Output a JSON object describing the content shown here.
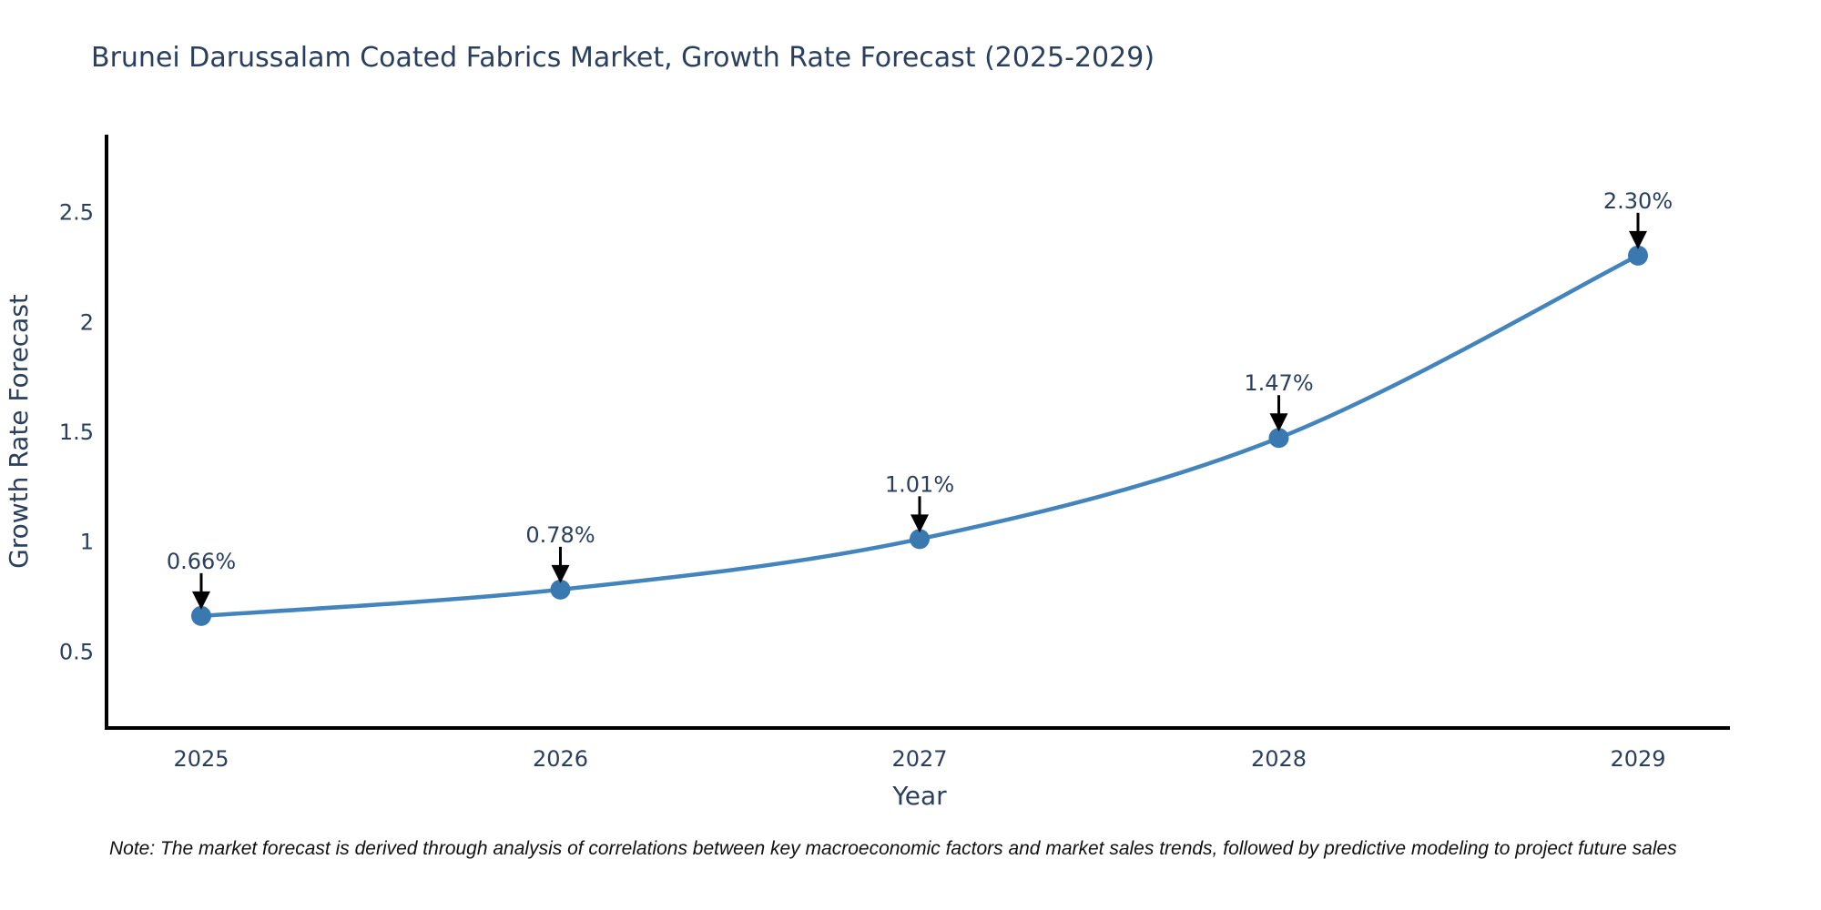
{
  "page": {
    "title": "Brunei Darussalam Coated Fabrics Market, Growth Rate Forecast (2025-2029)",
    "note": "Note: The market forecast is derived through analysis of correlations between key macroeconomic factors and market sales trends, followed by predictive modeling to project future sales"
  },
  "chart_data": {
    "type": "line",
    "title": "Brunei Darussalam Coated Fabrics Market, Growth Rate Forecast (2025-2029)",
    "x": [
      2025,
      2026,
      2027,
      2028,
      2029
    ],
    "series": [
      {
        "name": "Growth Rate Forecast",
        "values": [
          0.66,
          0.78,
          1.01,
          1.47,
          2.3
        ]
      }
    ],
    "point_labels": [
      "0.66%",
      "0.78%",
      "1.01%",
      "1.47%",
      "2.30%"
    ],
    "xlabel": "Year",
    "ylabel": "Growth Rate Forecast",
    "yticks": [
      0.5,
      1,
      1.5,
      2,
      2.5
    ],
    "ylim": [
      0.15,
      2.85
    ],
    "grid": false,
    "legend": "none",
    "annotations_have_arrows": true,
    "colors": {
      "line": "#4384bd",
      "marker": "#3a78b0",
      "arrow": "#000000",
      "text": "#2a3f5f",
      "axis": "#000000",
      "note": "#111111"
    }
  }
}
